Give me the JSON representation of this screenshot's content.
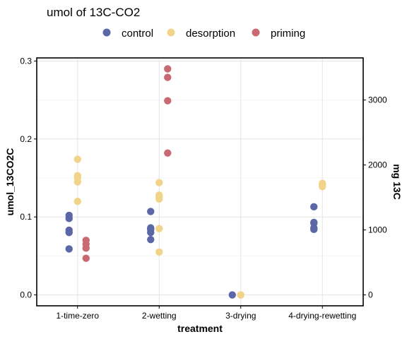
{
  "chart_data": {
    "type": "scatter",
    "title": "umol of 13C-CO2",
    "xlabel": "treatment",
    "ylabel": "umol_13CO2C",
    "y2label": "mg 13C",
    "categories": [
      "1-time-zero",
      "2-wetting",
      "3-drying",
      "4-drying-rewetting"
    ],
    "ylim": [
      -0.014,
      0.304
    ],
    "yticks": [
      0.0,
      0.1,
      0.2,
      0.3
    ],
    "ytick_labels": [
      "0.0",
      "0.1",
      "0.2",
      "0.3"
    ],
    "y2ticks": [
      0,
      1000,
      2000,
      3000
    ],
    "y2tick_labels": [
      "0",
      "1000",
      "2000",
      "3000"
    ],
    "y2_per_y": 12000,
    "grid": true,
    "legend_position": "top",
    "series": [
      {
        "name": "control",
        "color": "#5c67a8",
        "points": [
          {
            "x": "1-time-zero",
            "y": 0.102
          },
          {
            "x": "1-time-zero",
            "y": 0.098
          },
          {
            "x": "1-time-zero",
            "y": 0.083
          },
          {
            "x": "1-time-zero",
            "y": 0.08
          },
          {
            "x": "1-time-zero",
            "y": 0.059
          },
          {
            "x": "2-wetting",
            "y": 0.107
          },
          {
            "x": "2-wetting",
            "y": 0.086
          },
          {
            "x": "2-wetting",
            "y": 0.084
          },
          {
            "x": "2-wetting",
            "y": 0.08
          },
          {
            "x": "2-wetting",
            "y": 0.071
          },
          {
            "x": "3-drying",
            "y": 0.0
          },
          {
            "x": "4-drying-rewetting",
            "y": 0.113
          },
          {
            "x": "4-drying-rewetting",
            "y": 0.093
          },
          {
            "x": "4-drying-rewetting",
            "y": 0.092
          },
          {
            "x": "4-drying-rewetting",
            "y": 0.086
          },
          {
            "x": "4-drying-rewetting",
            "y": 0.084
          }
        ]
      },
      {
        "name": "desorption",
        "color": "#f2d38a",
        "points": [
          {
            "x": "1-time-zero",
            "y": 0.174
          },
          {
            "x": "1-time-zero",
            "y": 0.153
          },
          {
            "x": "1-time-zero",
            "y": 0.15
          },
          {
            "x": "1-time-zero",
            "y": 0.145
          },
          {
            "x": "1-time-zero",
            "y": 0.12
          },
          {
            "x": "2-wetting",
            "y": 0.144
          },
          {
            "x": "2-wetting",
            "y": 0.128
          },
          {
            "x": "2-wetting",
            "y": 0.126
          },
          {
            "x": "2-wetting",
            "y": 0.123
          },
          {
            "x": "2-wetting",
            "y": 0.085
          },
          {
            "x": "2-wetting",
            "y": 0.055
          },
          {
            "x": "3-drying",
            "y": 0.0
          },
          {
            "x": "3-drying",
            "y": 0.0
          },
          {
            "x": "4-drying-rewetting",
            "y": 0.143
          },
          {
            "x": "4-drying-rewetting",
            "y": 0.141
          },
          {
            "x": "4-drying-rewetting",
            "y": 0.139
          }
        ]
      },
      {
        "name": "priming",
        "color": "#c96a72",
        "points": [
          {
            "x": "1-time-zero",
            "y": 0.07
          },
          {
            "x": "1-time-zero",
            "y": 0.065
          },
          {
            "x": "1-time-zero",
            "y": 0.06
          },
          {
            "x": "1-time-zero",
            "y": 0.047
          },
          {
            "x": "2-wetting",
            "y": 0.29
          },
          {
            "x": "2-wetting",
            "y": 0.279
          },
          {
            "x": "2-wetting",
            "y": 0.249
          },
          {
            "x": "2-wetting",
            "y": 0.182
          }
        ]
      }
    ]
  }
}
